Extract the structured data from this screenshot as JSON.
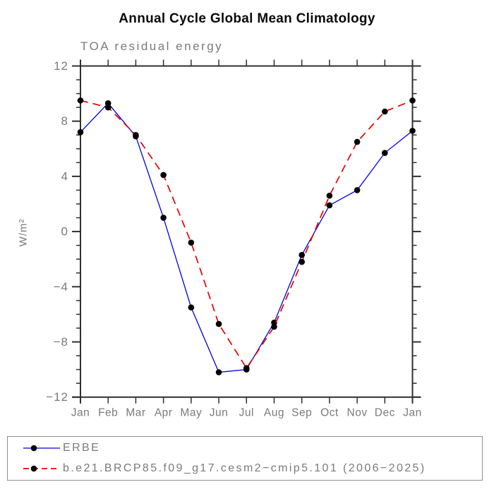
{
  "chart_data": {
    "type": "line",
    "title": "Annual Cycle Global Mean Climatology",
    "subtitle": "TOA residual energy",
    "ylabel": "W/m²",
    "xlabel": "",
    "categories": [
      "Jan",
      "Feb",
      "Mar",
      "Apr",
      "May",
      "Jun",
      "Jul",
      "Aug",
      "Sep",
      "Oct",
      "Nov",
      "Dec",
      "Jan"
    ],
    "ylim": [
      -12,
      12
    ],
    "y_major_tick_step": 4,
    "y_minor_tick_step": 1,
    "y_tick_labels": [
      "−12",
      "−8",
      "−4",
      "0",
      "4",
      "8",
      "12"
    ],
    "grid": "off",
    "legend_position": "bottom-box",
    "axis_color": "#2f2f2f",
    "label_color": "#7a7a7a",
    "marker_color": "#000000",
    "series": [
      {
        "name": "ERBE",
        "color": "#0000dd",
        "style": "solid",
        "marker": "filled-circle",
        "values": [
          7.2,
          9.3,
          6.9,
          1.0,
          -5.5,
          -10.2,
          -10.0,
          -6.6,
          -1.7,
          1.9,
          3.0,
          5.7,
          7.3
        ]
      },
      {
        "name": "b.e21.BRCP85.f09_g17.cesm2−cmip5.101 (2006−2025)",
        "color": "#e60000",
        "style": "dashed",
        "marker": "filled-circle",
        "values": [
          9.5,
          9.0,
          7.0,
          4.1,
          -0.8,
          -6.7,
          -9.9,
          -6.9,
          -2.2,
          2.6,
          6.5,
          8.7,
          9.5
        ]
      }
    ]
  }
}
